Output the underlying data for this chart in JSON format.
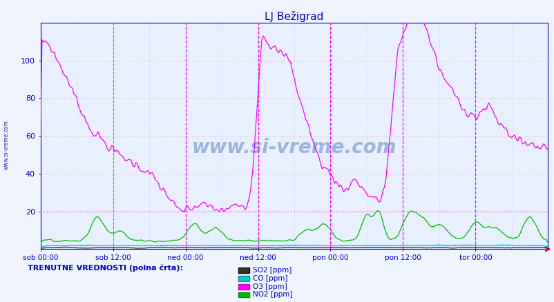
{
  "title": "LJ Bežigrad",
  "xlabel_ticks": [
    "sob 00:00",
    "sob 12:00",
    "ned 00:00",
    "ned 12:00",
    "pon 00:00",
    "pon 12:00",
    "tor 00:00"
  ],
  "ylim": [
    0,
    120
  ],
  "bg_color": "#f0f4ff",
  "plot_bg_color": "#e8f0ff",
  "title_color": "#0000cc",
  "tick_color": "#0000cc",
  "border_color": "#0000cc",
  "watermark": "www.si-vreme.com",
  "legend_label": "TRENUTNE VREDNOSTI (polna črta):",
  "so2_color": "#222222",
  "co_color": "#00cccc",
  "o3_color": "#ff00ff",
  "no2_color": "#00bb00",
  "vline_magenta_color": "#ff00ff",
  "vline_dark_color": "#444444",
  "hgrid_color": "#ffaaaa",
  "vgrid_color": "#cccccc",
  "hline20_color": "#ff88ff",
  "hline_co_color": "#00aacc",
  "legend_labels": [
    "SO2 [ppm]",
    "CO [ppm]",
    "O3 [ppm]",
    "NO2 [ppm]"
  ],
  "legend_colors": [
    "#333333",
    "#00cccc",
    "#ff00ff",
    "#00bb00"
  ]
}
